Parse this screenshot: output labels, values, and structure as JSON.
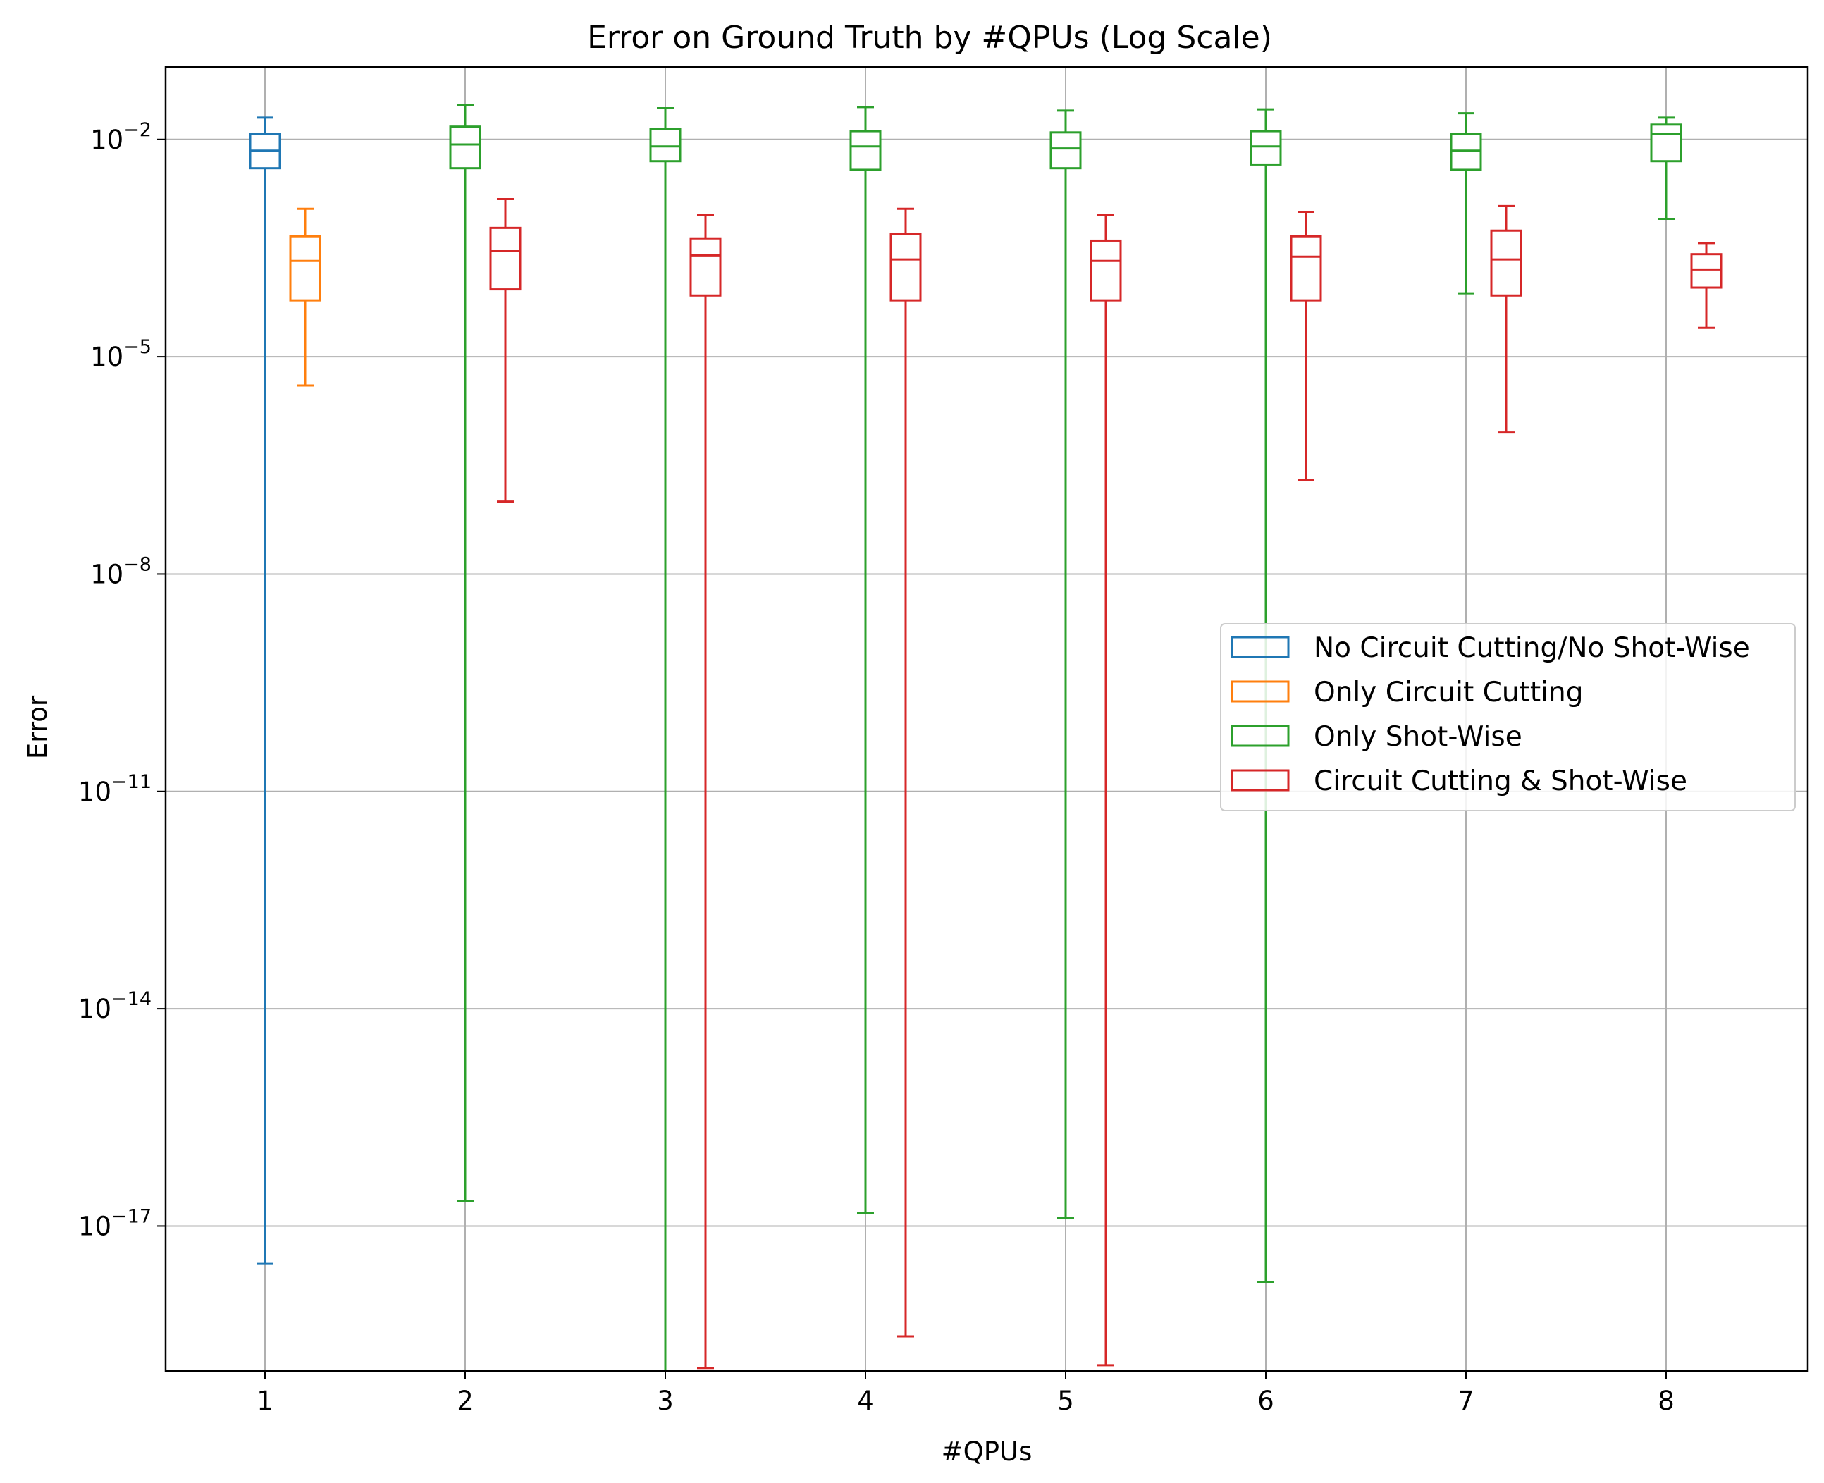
{
  "chart_data": {
    "type": "box",
    "title": "Error on Ground Truth by #QPUs (Log Scale)",
    "xlabel": "#QPUs",
    "ylabel": "Error",
    "yscale": "log",
    "ylim": [
      1e-19,
      0.1
    ],
    "yticks": [
      {
        "exp": -2,
        "value": 0.01,
        "base": "10",
        "sup": "−2"
      },
      {
        "exp": -5,
        "value": 1e-05,
        "base": "10",
        "sup": "−5"
      },
      {
        "exp": -8,
        "value": 1e-08,
        "base": "10",
        "sup": "−8"
      },
      {
        "exp": -11,
        "value": 1e-11,
        "base": "10",
        "sup": "−11"
      },
      {
        "exp": -14,
        "value": 1e-14,
        "base": "10",
        "sup": "−14"
      },
      {
        "exp": -17,
        "value": 1e-17,
        "base": "10",
        "sup": "−17"
      }
    ],
    "categories": [
      "1",
      "2",
      "3",
      "4",
      "5",
      "6",
      "7",
      "8"
    ],
    "grid": true,
    "legend_position": "center-right",
    "series": [
      {
        "name": "No Circuit Cutting/No Shot-Wise",
        "color": "#1f77b4",
        "boxes": [
          {
            "category": "1",
            "whisker_low": 3e-18,
            "q1": 0.004,
            "median": 0.007,
            "q3": 0.012,
            "whisker_high": 0.02
          }
        ]
      },
      {
        "name": "Only Circuit Cutting",
        "color": "#ff7f0e",
        "boxes": [
          {
            "category": "1",
            "whisker_low": 4e-06,
            "q1": 6e-05,
            "median": 0.00021,
            "q3": 0.00046,
            "whisker_high": 0.0011
          }
        ]
      },
      {
        "name": "Only Shot-Wise",
        "color": "#2ca02c",
        "boxes": [
          {
            "category": "2",
            "whisker_low": 2.2e-17,
            "q1": 0.004,
            "median": 0.0085,
            "q3": 0.015,
            "whisker_high": 0.03
          },
          {
            "category": "3",
            "whisker_low": 1e-19,
            "q1": 0.005,
            "median": 0.008,
            "q3": 0.014,
            "whisker_high": 0.027
          },
          {
            "category": "4",
            "whisker_low": 1.5e-17,
            "q1": 0.0038,
            "median": 0.008,
            "q3": 0.013,
            "whisker_high": 0.028
          },
          {
            "category": "5",
            "whisker_low": 1.3e-17,
            "q1": 0.004,
            "median": 0.0075,
            "q3": 0.0125,
            "whisker_high": 0.025
          },
          {
            "category": "6",
            "whisker_low": 1.7e-18,
            "q1": 0.0045,
            "median": 0.008,
            "q3": 0.013,
            "whisker_high": 0.026
          },
          {
            "category": "7",
            "whisker_low": 7.5e-05,
            "q1": 0.0038,
            "median": 0.007,
            "q3": 0.012,
            "whisker_high": 0.023
          },
          {
            "category": "8",
            "whisker_low": 0.0008,
            "q1": 0.005,
            "median": 0.012,
            "q3": 0.016,
            "whisker_high": 0.02
          }
        ]
      },
      {
        "name": "Circuit Cutting & Shot-Wise",
        "color": "#d62728",
        "boxes": [
          {
            "category": "2",
            "whisker_low": 1e-07,
            "q1": 8.5e-05,
            "median": 0.00029,
            "q3": 0.0006,
            "whisker_high": 0.0015
          },
          {
            "category": "3",
            "whisker_low": 1.1e-19,
            "q1": 7e-05,
            "median": 0.00025,
            "q3": 0.00043,
            "whisker_high": 0.0009
          },
          {
            "category": "4",
            "whisker_low": 3e-19,
            "q1": 6e-05,
            "median": 0.00022,
            "q3": 0.0005,
            "whisker_high": 0.0011
          },
          {
            "category": "5",
            "whisker_low": 1.2e-19,
            "q1": 6e-05,
            "median": 0.00021,
            "q3": 0.0004,
            "whisker_high": 0.0009
          },
          {
            "category": "6",
            "whisker_low": 2e-07,
            "q1": 6e-05,
            "median": 0.00024,
            "q3": 0.00046,
            "whisker_high": 0.001
          },
          {
            "category": "7",
            "whisker_low": 9e-07,
            "q1": 7e-05,
            "median": 0.00022,
            "q3": 0.00055,
            "whisker_high": 0.0012
          },
          {
            "category": "8",
            "whisker_low": 2.5e-05,
            "q1": 9e-05,
            "median": 0.00016,
            "q3": 0.00026,
            "whisker_high": 0.00037
          }
        ]
      }
    ]
  }
}
